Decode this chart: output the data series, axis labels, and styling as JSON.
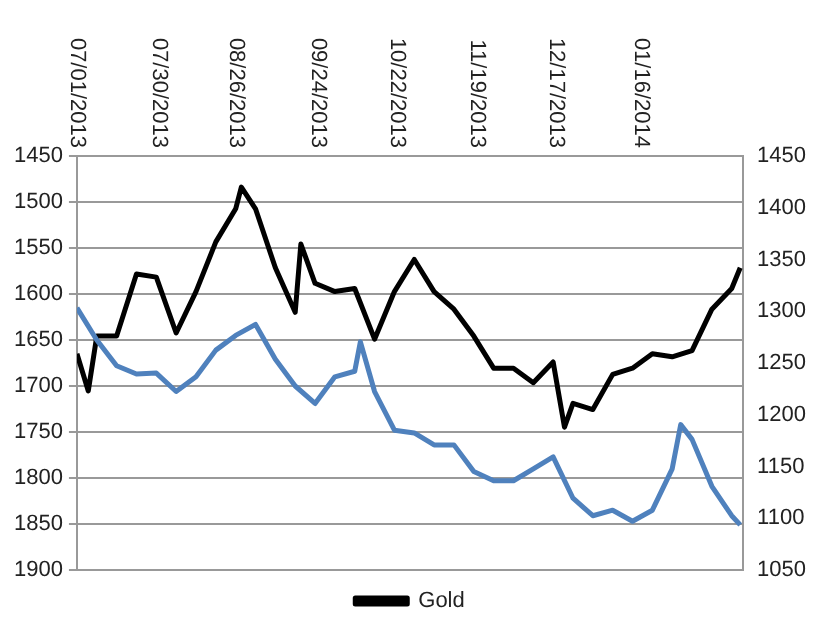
{
  "chart_data": {
    "type": "line",
    "xlim": [
      "2013-07-01",
      "2014-02-21"
    ],
    "xticks": [
      {
        "value": "2013-07-01",
        "label": "07/01/2013"
      },
      {
        "value": "2013-07-30",
        "label": "07/30/2013"
      },
      {
        "value": "2013-08-26",
        "label": "08/26/2013"
      },
      {
        "value": "2013-09-24",
        "label": "09/24/2013"
      },
      {
        "value": "2013-10-22",
        "label": "10/22/2013"
      },
      {
        "value": "2013-11-19",
        "label": "11/19/2013"
      },
      {
        "value": "2013-12-17",
        "label": "12/17/2013"
      },
      {
        "value": "2014-01-16",
        "label": "01/16/2014"
      }
    ],
    "ylim": [
      1900,
      1450
    ],
    "yticks": [
      1450,
      1500,
      1550,
      1600,
      1650,
      1700,
      1750,
      1800,
      1850,
      1900
    ],
    "y2lim": [
      1050,
      1450
    ],
    "y2ticks": [
      1050,
      1100,
      1150,
      1200,
      1250,
      1300,
      1350,
      1400,
      1450
    ],
    "grid": "y",
    "legend": "bottom",
    "marker": "none",
    "line_style": "solid",
    "series": [
      {
        "color": "#4f81bd",
        "x": [
          "2013-07-01",
          "2013-07-08",
          "2013-07-15",
          "2013-07-22",
          "2013-07-29",
          "2013-08-05",
          "2013-08-12",
          "2013-08-19",
          "2013-08-26",
          "2013-09-02",
          "2013-09-09",
          "2013-09-16",
          "2013-09-23",
          "2013-09-30",
          "2013-10-07",
          "2013-10-09",
          "2013-10-14",
          "2013-10-21",
          "2013-10-28",
          "2013-11-04",
          "2013-11-11",
          "2013-11-18",
          "2013-11-25",
          "2013-12-02",
          "2013-12-09",
          "2013-12-16",
          "2013-12-23",
          "2013-12-30",
          "2014-01-06",
          "2014-01-13",
          "2014-01-20",
          "2014-01-27",
          "2014-01-30",
          "2014-02-03",
          "2014-02-10",
          "2014-02-17",
          "2014-02-20"
        ],
        "values": [
          1615,
          1650,
          1678,
          1687,
          1686,
          1706,
          1690,
          1661,
          1645,
          1633,
          1671,
          1700,
          1719,
          1690,
          1684,
          1652,
          1706,
          1748,
          1751,
          1764,
          1764,
          1793,
          1803,
          1803,
          1790,
          1777,
          1822,
          1841,
          1835,
          1847,
          1835,
          1790,
          1742,
          1758,
          1809,
          1841,
          1851
        ]
      },
      {
        "name": "Gold",
        "color": "#000000",
        "axis": "y2",
        "x": [
          "2013-07-01",
          "2013-07-05",
          "2013-07-08",
          "2013-07-15",
          "2013-07-22",
          "2013-07-29",
          "2013-08-05",
          "2013-08-12",
          "2013-08-19",
          "2013-08-26",
          "2013-08-28",
          "2013-09-02",
          "2013-09-09",
          "2013-09-16",
          "2013-09-18",
          "2013-09-23",
          "2013-09-30",
          "2013-10-07",
          "2013-10-14",
          "2013-10-21",
          "2013-10-28",
          "2013-11-04",
          "2013-11-11",
          "2013-11-18",
          "2013-11-25",
          "2013-12-02",
          "2013-12-09",
          "2013-12-16",
          "2013-12-20",
          "2013-12-23",
          "2013-12-30",
          "2014-01-06",
          "2014-01-13",
          "2014-01-20",
          "2014-01-27",
          "2014-02-03",
          "2014-02-10",
          "2014-02-17",
          "2014-02-20"
        ],
        "values": [
          1259,
          1223,
          1276,
          1276,
          1336,
          1333,
          1279,
          1319,
          1367,
          1399,
          1420,
          1399,
          1342,
          1299,
          1365,
          1327,
          1319,
          1322,
          1273,
          1319,
          1350,
          1319,
          1302,
          1276,
          1245,
          1245,
          1231,
          1251,
          1188,
          1211,
          1205,
          1239,
          1245,
          1259,
          1256,
          1262,
          1302,
          1322,
          1342
        ]
      }
    ]
  }
}
